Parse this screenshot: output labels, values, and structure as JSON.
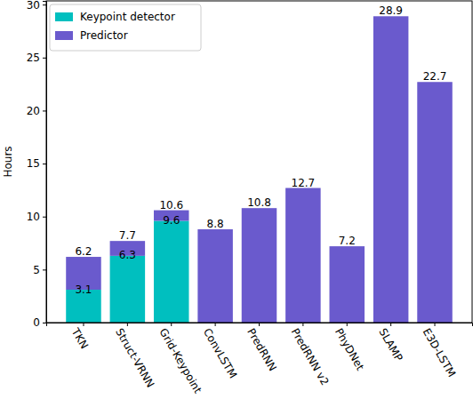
{
  "chart_data": {
    "type": "bar",
    "stacked": true,
    "y_label": "Hours",
    "categories": [
      "TKN",
      "Struct-VRNN",
      "Grid-Keypoint",
      "ConvLSTM",
      "PredRNN",
      "PredRNN v2",
      "PhyDNet",
      "SLAMP",
      "E3D-LSTM"
    ],
    "series": [
      {
        "name": "Keypoint detector",
        "color": "#00bfbf",
        "data_labels": true,
        "values": [
          3.1,
          6.3,
          9.6,
          null,
          null,
          null,
          null,
          null,
          null
        ]
      },
      {
        "name": "Predictor",
        "color": "#6a5acd",
        "values": [
          3.1,
          1.4,
          1.0,
          8.8,
          10.8,
          12.7,
          7.2,
          28.9,
          22.7
        ]
      }
    ],
    "totals": [
      6.2,
      7.7,
      10.6,
      8.8,
      10.8,
      12.7,
      7.2,
      28.9,
      22.7
    ],
    "ylim": [
      0,
      30.35
    ],
    "yticks": [
      0,
      5,
      10,
      15,
      20,
      25,
      30
    ],
    "grid": false,
    "legend": "upper left"
  }
}
